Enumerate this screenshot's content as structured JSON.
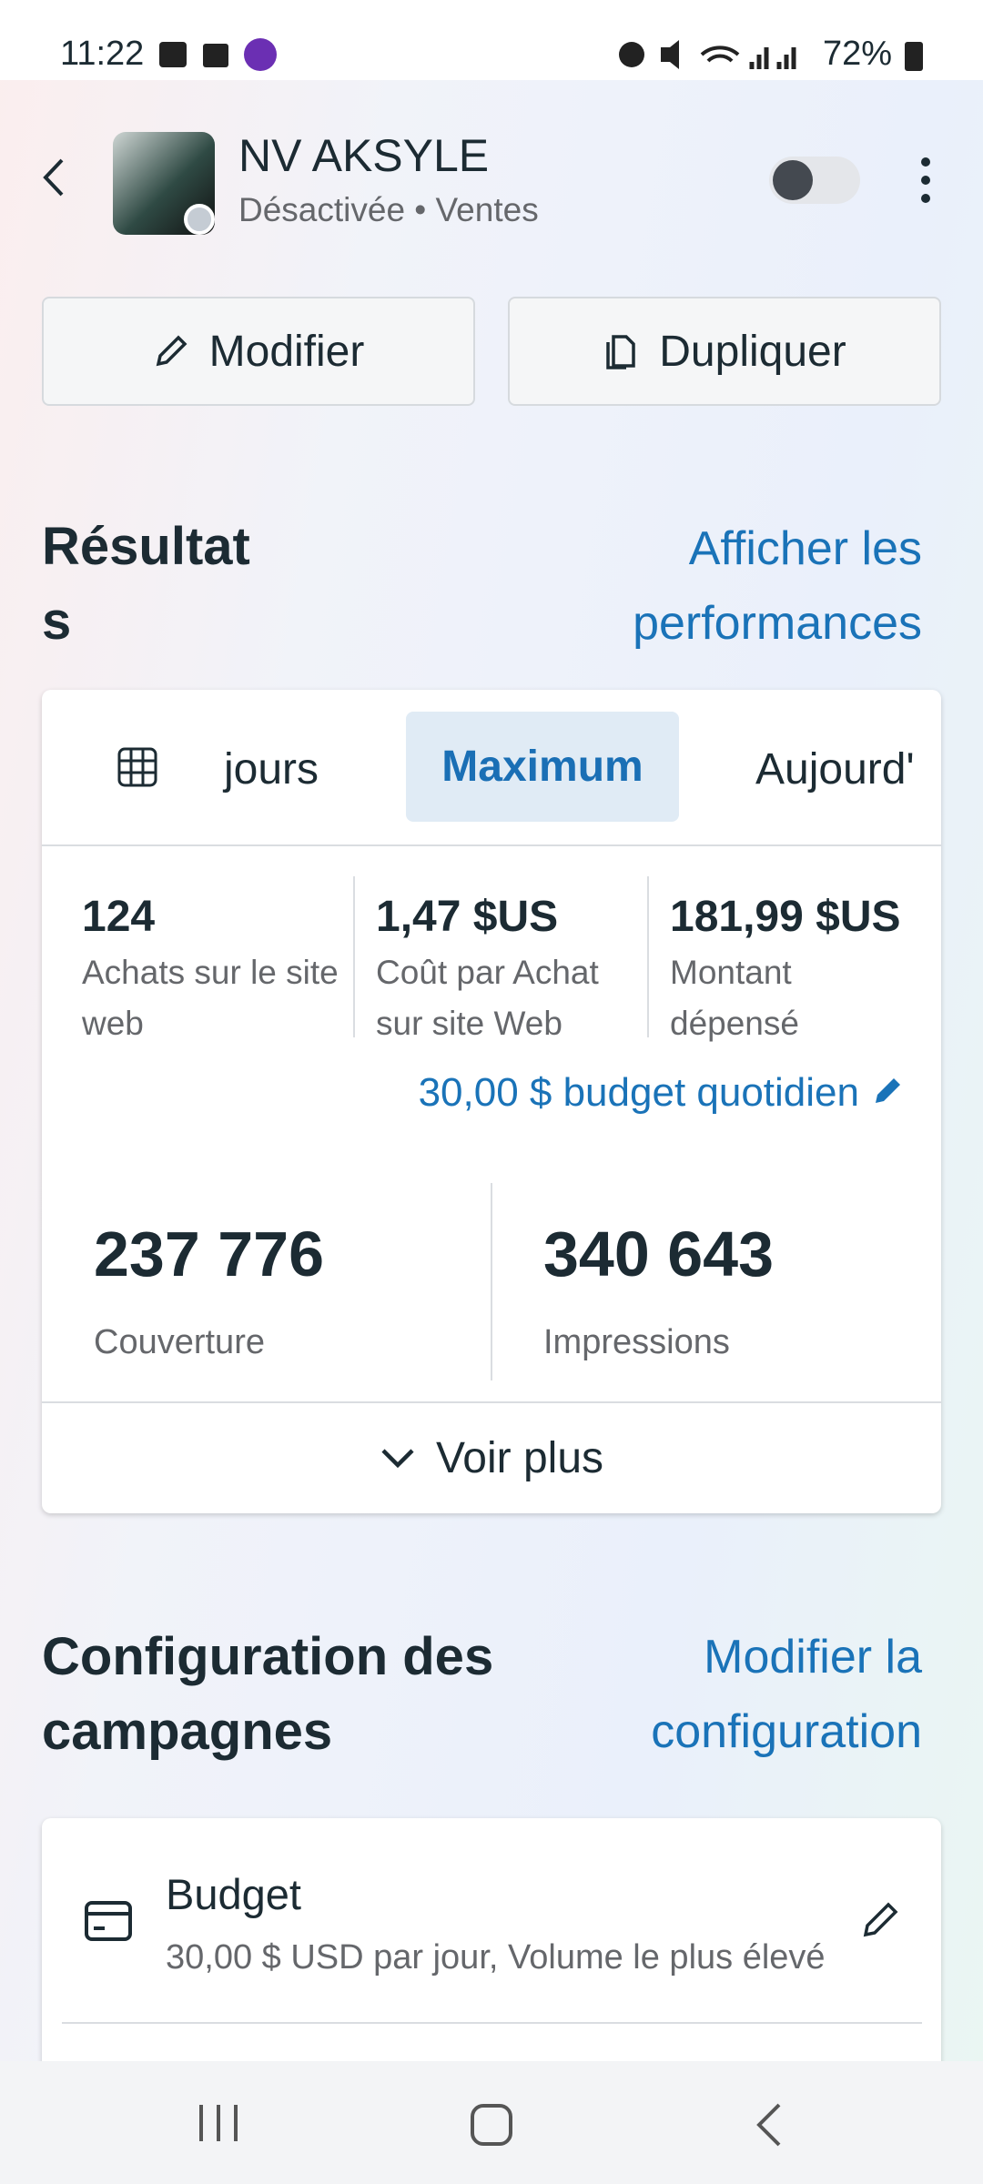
{
  "status_bar": {
    "time": "11:22",
    "battery": "72%"
  },
  "header": {
    "name": "NV AKSYLE",
    "subtitle": "Désactivée • Ventes"
  },
  "actions": {
    "edit": "Modifier",
    "duplicate": "Dupliquer"
  },
  "results": {
    "title": "Résultats",
    "link": "Afficher les performances",
    "tabs": [
      "jours",
      "Maximum",
      "Aujourd'hui"
    ],
    "metrics": [
      {
        "value": "124",
        "label": "Achats sur le site web"
      },
      {
        "value": "1,47 $US",
        "label": "Coût par Achat sur site Web"
      },
      {
        "value": "181,99 $US",
        "label": "Montant dépensé"
      }
    ],
    "budget_link": "30,00 $ budget quotidien",
    "totals": [
      {
        "value": "237 776",
        "label": "Couverture"
      },
      {
        "value": "340 643",
        "label": "Impressions"
      }
    ],
    "more": "Voir plus"
  },
  "configuration": {
    "title": "Configuration des campagnes",
    "link": "Modifier la configuration",
    "items": [
      {
        "title": "Budget",
        "detail": "30,00 $ USD par jour, Volume le plus élevé"
      }
    ]
  }
}
